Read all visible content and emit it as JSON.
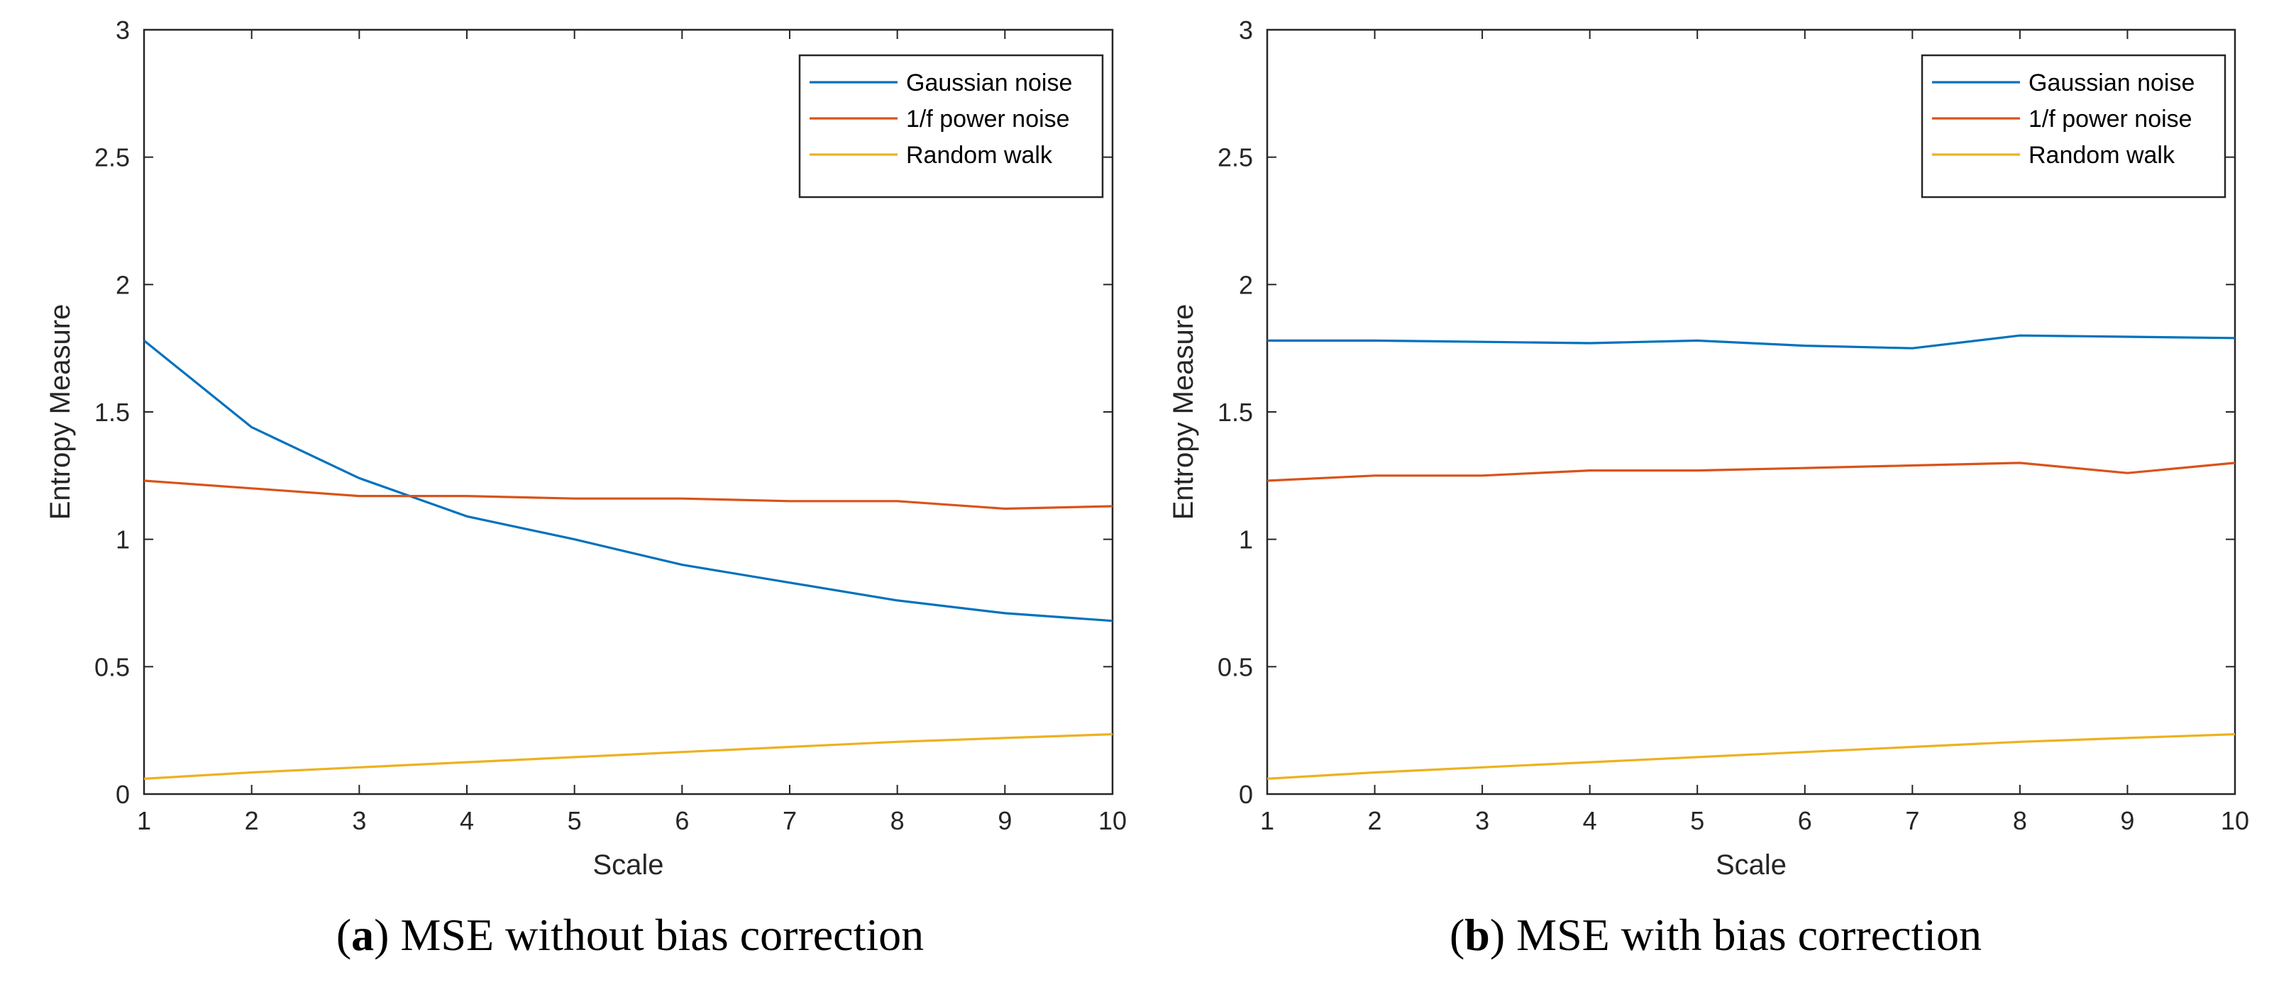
{
  "colors": {
    "series_blue": "#0072BD",
    "series_orange": "#D95319",
    "series_yellow": "#EDB120",
    "axis": "#262626",
    "background": "#FFFFFF"
  },
  "chart_data": [
    {
      "type": "line",
      "panel_letter": "a",
      "caption": " MSE without bias correction",
      "title": "",
      "xlabel": "Scale",
      "ylabel": "Entropy Measure",
      "xlim": [
        1,
        10
      ],
      "ylim": [
        0,
        3
      ],
      "xticks": [
        "1",
        "2",
        "3",
        "4",
        "5",
        "6",
        "7",
        "8",
        "9",
        "10"
      ],
      "yticks": [
        "0",
        "0.5",
        "1",
        "1.5",
        "2",
        "2.5",
        "3"
      ],
      "x": [
        1,
        2,
        3,
        4,
        5,
        6,
        7,
        8,
        9,
        10
      ],
      "grid": false,
      "legend_position": "top-right",
      "series": [
        {
          "name": "Gaussian noise",
          "color": "#0072BD",
          "values": [
            1.78,
            1.44,
            1.24,
            1.09,
            1.0,
            0.9,
            0.83,
            0.76,
            0.71,
            0.68
          ]
        },
        {
          "name": "1/f power noise",
          "color": "#D95319",
          "values": [
            1.23,
            1.2,
            1.17,
            1.17,
            1.16,
            1.16,
            1.15,
            1.15,
            1.12,
            1.13
          ]
        },
        {
          "name": "Random walk",
          "color": "#EDB120",
          "values": [
            0.06,
            0.085,
            0.105,
            0.125,
            0.145,
            0.165,
            0.185,
            0.205,
            0.22,
            0.235
          ]
        }
      ]
    },
    {
      "type": "line",
      "panel_letter": "b",
      "caption": " MSE with bias correction",
      "title": "",
      "xlabel": "Scale",
      "ylabel": "Entropy Measure",
      "xlim": [
        1,
        10
      ],
      "ylim": [
        0,
        3
      ],
      "xticks": [
        "1",
        "2",
        "3",
        "4",
        "5",
        "6",
        "7",
        "8",
        "9",
        "10"
      ],
      "yticks": [
        "0",
        "0.5",
        "1",
        "1.5",
        "2",
        "2.5",
        "3"
      ],
      "x": [
        1,
        2,
        3,
        4,
        5,
        6,
        7,
        8,
        9,
        10
      ],
      "grid": false,
      "legend_position": "top-right",
      "series": [
        {
          "name": "Gaussian noise",
          "color": "#0072BD",
          "values": [
            1.78,
            1.78,
            1.775,
            1.77,
            1.78,
            1.76,
            1.75,
            1.8,
            1.795,
            1.79
          ]
        },
        {
          "name": "1/f power noise",
          "color": "#D95319",
          "values": [
            1.23,
            1.25,
            1.25,
            1.27,
            1.27,
            1.28,
            1.29,
            1.3,
            1.26,
            1.3
          ]
        },
        {
          "name": "Random walk",
          "color": "#EDB120",
          "values": [
            0.06,
            0.085,
            0.105,
            0.125,
            0.145,
            0.165,
            0.185,
            0.205,
            0.22,
            0.235
          ]
        }
      ]
    }
  ]
}
